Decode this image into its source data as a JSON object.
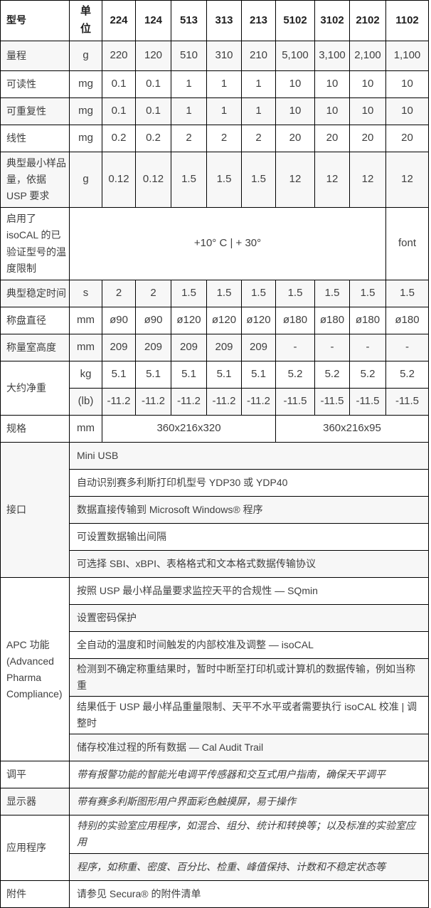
{
  "colors": {
    "stripe": "#f7f7f7",
    "border": "#000000",
    "text": "#3f3f3f",
    "header_text": "#1f1f1f"
  },
  "header": {
    "model_col_label": "型号",
    "unit_col_label": "单位",
    "models": [
      "224",
      "124",
      "513",
      "313",
      "213",
      "5102",
      "3102",
      "2102",
      "1102"
    ]
  },
  "spec_rows": [
    {
      "label": "量程",
      "unit": "g",
      "values": [
        "220",
        "120",
        "510",
        "310",
        "210",
        "5,100",
        "3,100",
        "2,100",
        "1,100"
      ]
    },
    {
      "label": "可读性",
      "unit": "mg",
      "values": [
        "0.1",
        "0.1",
        "1",
        "1",
        "1",
        "10",
        "10",
        "10",
        "10"
      ]
    },
    {
      "label": "可重复性",
      "unit": "mg",
      "values": [
        "0.1",
        "0.1",
        "1",
        "1",
        "1",
        "10",
        "10",
        "10",
        "10"
      ]
    },
    {
      "label": "线性",
      "unit": "mg",
      "values": [
        "0.2",
        "0.2",
        "2",
        "2",
        "2",
        "20",
        "20",
        "20",
        "20"
      ]
    },
    {
      "label": "典型最小样品量，依据 USP 要求",
      "unit": "g",
      "values": [
        "0.12",
        "0.12",
        "1.5",
        "1.5",
        "1.5",
        "12",
        "12",
        "12",
        "12"
      ]
    }
  ],
  "temperature_row": {
    "label": "启用了 isoCAL 的已验证型号的温度限制",
    "merged_value": "+10° C | + 30°",
    "last_cell": "font"
  },
  "spec_rows2": [
    {
      "label": "典型稳定时间",
      "unit": "s",
      "values": [
        "2",
        "2",
        "1.5",
        "1.5",
        "1.5",
        "1.5",
        "1.5",
        "1.5",
        "1.5"
      ]
    },
    {
      "label": "称盘直径",
      "unit": "mm",
      "values": [
        "ø90",
        "ø90",
        "ø120",
        "ø120",
        "ø120",
        "ø180",
        "ø180",
        "ø180",
        "ø180"
      ]
    },
    {
      "label": "称量室高度",
      "unit": "mm",
      "values": [
        "209",
        "209",
        "209",
        "209",
        "209",
        "-",
        "-",
        "-",
        "-"
      ]
    }
  ],
  "weight_row": {
    "label": "大约净重",
    "rows": [
      {
        "unit": "kg",
        "values": [
          "5.1",
          "5.1",
          "5.1",
          "5.1",
          "5.1",
          "5.2",
          "5.2",
          "5.2",
          "5.2"
        ]
      },
      {
        "unit": "(lb)",
        "values": [
          "-11.2",
          "-11.2",
          "-11.2",
          "-11.2",
          "-11.2",
          "-11.5",
          "-11.5",
          "-11.5",
          "-11.5"
        ]
      }
    ]
  },
  "dimensions_row": {
    "label": "规格",
    "unit": "mm",
    "left_value": "360x216x320",
    "right_value": "360x216x95"
  },
  "interface_section": {
    "label": "接口",
    "features": [
      "Mini USB",
      "自动识别赛多利斯打印机型号 YDP30 或 YDP40",
      "数据直接传输到 Microsoft Windows® 程序",
      "可设置数据输出间隔",
      "可选择 SBI、xBPI、表格格式和文本格式数据传输协议"
    ]
  },
  "apc_section": {
    "label": "APC 功能 (Advanced Pharma Compliance)",
    "features": [
      "按照 USP 最小样品量要求监控天平的合规性 — SQmin",
      "设置密码保护",
      "全自动的温度和时间触发的内部校准及调整 — isoCAL",
      "检测到不确定称重结果时，暂时中断至打印机或计算机的数据传输，例如当称重",
      "结果低于 USP 最小样品重量限制、天平不水平或者需要执行 isoCAL 校准 | 调整时",
      "储存校准过程的所有数据 — Cal Audit Trail"
    ]
  },
  "leveling_row": {
    "label": "调平",
    "value": "带有报警功能的智能光电调平传感器和交互式用户指南，确保天平调平"
  },
  "display_row": {
    "label": "显示器",
    "value": "带有赛多利斯图形用户界面彩色触摸屏，易于操作"
  },
  "applications_section": {
    "label": "应用程序",
    "lines": [
      "特别的实验室应用程序，如混合、组分、统计和转换等；以及标准的实验室应用",
      "程序，如称重、密度、百分比、检重、峰值保持、计数和不稳定状态等"
    ]
  },
  "accessories_row": {
    "label": "附件",
    "value": "请参见 Secura® 的附件清单"
  }
}
